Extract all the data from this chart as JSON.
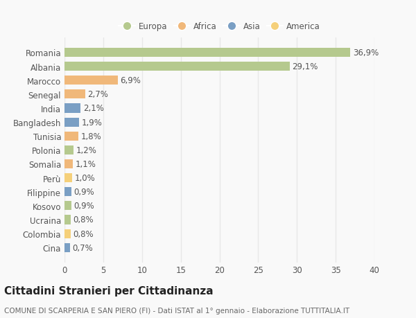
{
  "categories": [
    "Romania",
    "Albania",
    "Marocco",
    "Senegal",
    "India",
    "Bangladesh",
    "Tunisia",
    "Polonia",
    "Somalia",
    "Perù",
    "Filippine",
    "Kosovo",
    "Ucraina",
    "Colombia",
    "Cina"
  ],
  "values": [
    36.9,
    29.1,
    6.9,
    2.7,
    2.1,
    1.9,
    1.8,
    1.2,
    1.1,
    1.0,
    0.9,
    0.9,
    0.8,
    0.8,
    0.7
  ],
  "bar_colors": [
    "#b5c98e",
    "#b5c98e",
    "#f0b87a",
    "#f0b87a",
    "#7a9fc4",
    "#7a9fc4",
    "#f0b87a",
    "#b5c98e",
    "#f0b87a",
    "#f5d07a",
    "#7a9fc4",
    "#b5c98e",
    "#b5c98e",
    "#f5d07a",
    "#7a9fc4"
  ],
  "legend_labels": [
    "Europa",
    "Africa",
    "Asia",
    "America"
  ],
  "legend_colors": [
    "#b5c98e",
    "#f0b87a",
    "#7a9fc4",
    "#f5d07a"
  ],
  "title": "Cittadini Stranieri per Cittadinanza",
  "subtitle": "COMUNE DI SCARPERIA E SAN PIERO (FI) - Dati ISTAT al 1° gennaio - Elaborazione TUTTITALIA.IT",
  "xlim": [
    0,
    40
  ],
  "xticks": [
    0,
    5,
    10,
    15,
    20,
    25,
    30,
    35,
    40
  ],
  "background_color": "#f9f9f9",
  "grid_color": "#e8e8e8",
  "bar_height": 0.65,
  "label_fontsize": 8.5,
  "title_fontsize": 11,
  "subtitle_fontsize": 7.5
}
